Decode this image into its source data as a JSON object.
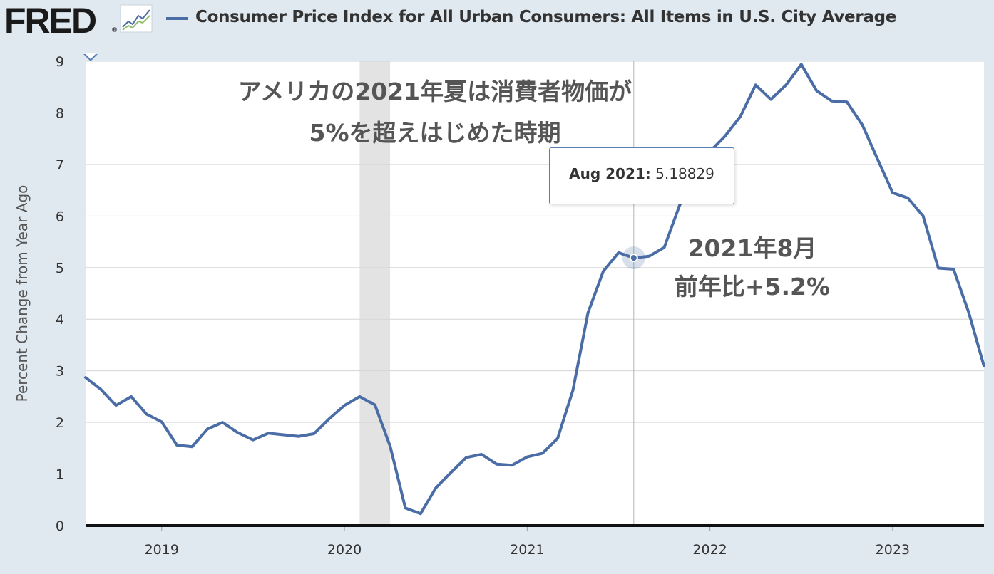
{
  "header": {
    "logo_text": "FRED",
    "logo_mark": "®",
    "logo_icon": "line-graph-icon",
    "title": "Consumer Price Index for All Urban Consumers: All Items in U.S. City Average"
  },
  "annotations": {
    "main_line1": "アメリカの2021年夏は消費者物価が",
    "main_line2": "5%を超えはじめた時期",
    "point_line1": "2021年8月",
    "point_line2": "前年比+5.2%"
  },
  "tooltip": {
    "label": "Aug 2021:",
    "value": "5.18829"
  },
  "colors": {
    "series": "#4b6da6",
    "recession": "#e3e3e3",
    "background": "#e1e9f0",
    "plot": "#ffffff"
  },
  "chart_data": {
    "type": "line",
    "title": "Consumer Price Index for All Urban Consumers: All Items in U.S. City Average",
    "xlabel": "",
    "ylabel": "Percent Change from Year Ago",
    "ylim": [
      0,
      9
    ],
    "xlim": [
      "2018-08",
      "2023-07"
    ],
    "yticks": [
      "0",
      "1",
      "2",
      "3",
      "4",
      "5",
      "6",
      "7",
      "8",
      "9"
    ],
    "xticks": [
      {
        "date": "2019-01",
        "label": "2019"
      },
      {
        "date": "2020-01",
        "label": "2020"
      },
      {
        "date": "2021-01",
        "label": "2021"
      },
      {
        "date": "2022-01",
        "label": "2022"
      },
      {
        "date": "2023-01",
        "label": "2023"
      }
    ],
    "grid": "horizontal",
    "recession": [
      "2020-02",
      "2020-04"
    ],
    "highlight": {
      "x": "2021-08",
      "y": 5.18829
    },
    "series": [
      {
        "x": [
          "2018-08",
          "2018-09",
          "2018-10",
          "2018-11",
          "2018-12",
          "2019-01",
          "2019-02",
          "2019-03",
          "2019-04",
          "2019-05",
          "2019-06",
          "2019-07",
          "2019-08",
          "2019-09",
          "2019-10",
          "2019-11",
          "2019-12",
          "2020-01",
          "2020-02",
          "2020-03",
          "2020-04",
          "2020-05",
          "2020-06",
          "2020-07",
          "2020-08",
          "2020-09",
          "2020-10",
          "2020-11",
          "2020-12",
          "2021-01",
          "2021-02",
          "2021-03",
          "2021-04",
          "2021-05",
          "2021-06",
          "2021-07",
          "2021-08",
          "2021-09",
          "2021-10",
          "2021-11",
          "2021-12",
          "2022-01",
          "2022-02",
          "2022-03",
          "2022-04",
          "2022-05",
          "2022-06",
          "2022-07",
          "2022-08",
          "2022-09",
          "2022-10",
          "2022-11",
          "2022-12",
          "2023-01",
          "2023-02",
          "2023-03",
          "2023-04",
          "2023-05",
          "2023-06",
          "2023-07"
        ],
        "values": [
          2.87,
          2.64,
          2.33,
          2.5,
          2.16,
          2.01,
          1.56,
          1.53,
          1.87,
          2.0,
          1.8,
          1.66,
          1.79,
          1.76,
          1.73,
          1.78,
          2.07,
          2.33,
          2.5,
          2.34,
          1.54,
          0.34,
          0.23,
          0.73,
          1.03,
          1.32,
          1.38,
          1.19,
          1.17,
          1.33,
          1.4,
          1.69,
          2.62,
          4.13,
          4.93,
          5.29,
          5.18829,
          5.22,
          5.39,
          6.2,
          6.8,
          7.25,
          7.55,
          7.93,
          8.54,
          8.26,
          8.54,
          8.94,
          8.43,
          8.23,
          8.21,
          7.77,
          7.11,
          6.45,
          6.35,
          6.0,
          4.99,
          4.97,
          4.13,
          3.09
        ]
      }
    ]
  }
}
